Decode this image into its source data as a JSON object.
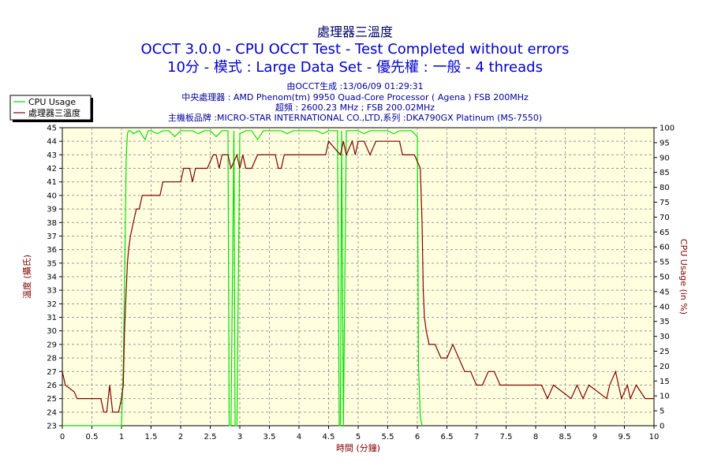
{
  "titles": {
    "line1": "處理器三溫度",
    "line2": "OCCT 3.0.0 - CPU OCCT Test - Test Completed without errors",
    "line3": "10分 - 模式 : Large Data Set - 優先權 : 一般 - 4 threads"
  },
  "info": {
    "generated": "由OCCT生成 :13/06/09 01:29:31",
    "cpu": "中央處理器 : AMD Phenom(tm) 9950 Quad-Core Processor ( Agena ) FSB 200MHz",
    "clock": "超頻 : 2600.23 MHz ; FSB 200.02MHz",
    "board": "主機板品牌 :MICRO-STAR INTERNATIONAL CO.,LTD,系列 :DKA790GX Platinum (MS-7550)"
  },
  "colors": {
    "cpu_usage": "#00e000",
    "temperature": "#800000",
    "grid": "#999999"
  },
  "chart_data": {
    "type": "line",
    "xlabel": "時間 (分鐘)",
    "ylabel_left": "溫度 (攝氏)",
    "ylabel_right": "CPU Usage (in %)",
    "xlim": [
      0,
      10
    ],
    "ylim_left": [
      23,
      45
    ],
    "ylim_right": [
      0,
      100
    ],
    "x_ticks": [
      "0",
      "0.5",
      "1",
      "1.5",
      "2",
      "2.5",
      "3",
      "3.5",
      "4",
      "4.5",
      "5",
      "5.5",
      "6",
      "6.5",
      "7",
      "7.5",
      "8",
      "8.5",
      "9",
      "9.5",
      "10"
    ],
    "y_left_ticks": [
      "23",
      "24",
      "25",
      "26",
      "27",
      "28",
      "29",
      "30",
      "31",
      "32",
      "33",
      "34",
      "35",
      "36",
      "37",
      "38",
      "39",
      "40",
      "41",
      "42",
      "43",
      "44",
      "45"
    ],
    "y_right_ticks": [
      "0",
      "5",
      "10",
      "15",
      "20",
      "25",
      "30",
      "35",
      "40",
      "45",
      "50",
      "55",
      "60",
      "65",
      "70",
      "75",
      "80",
      "85",
      "90",
      "95",
      "100"
    ],
    "grid": true,
    "legend_position": "top-left",
    "series": [
      {
        "name": "CPU Usage",
        "axis": "right",
        "x": [
          0,
          1.0,
          1.03,
          1.06,
          1.08,
          1.1,
          1.12,
          1.15,
          1.2,
          1.3,
          1.4,
          1.45,
          1.5,
          1.6,
          1.7,
          1.8,
          1.9,
          2.0,
          2.1,
          2.2,
          2.3,
          2.4,
          2.5,
          2.6,
          2.7,
          2.75,
          2.8,
          2.82,
          2.85,
          2.9,
          2.92,
          2.95,
          3.0,
          3.1,
          3.2,
          3.3,
          3.4,
          3.5,
          3.6,
          3.7,
          3.8,
          3.9,
          4.0,
          4.1,
          4.2,
          4.3,
          4.4,
          4.5,
          4.6,
          4.65,
          4.68,
          4.7,
          4.72,
          4.75,
          4.8,
          4.9,
          5.0,
          5.1,
          5.2,
          5.3,
          5.4,
          5.5,
          5.6,
          5.7,
          5.8,
          5.9,
          6.0,
          6.02,
          6.05,
          6.08
        ],
        "values": [
          0,
          0,
          20,
          60,
          90,
          98,
          99,
          99,
          98,
          99,
          96,
          99,
          99,
          98,
          99,
          99,
          97,
          99,
          99,
          99,
          98,
          99,
          99,
          97,
          99,
          99,
          99,
          0,
          0,
          99,
          0,
          0,
          98,
          99,
          99,
          96,
          99,
          99,
          99,
          99,
          98,
          99,
          99,
          99,
          99,
          99,
          98,
          99,
          99,
          99,
          0,
          0,
          99,
          0,
          99,
          99,
          99,
          98,
          99,
          99,
          99,
          99,
          98,
          99,
          99,
          99,
          97,
          20,
          3,
          0
        ]
      },
      {
        "name": "處理器三溫度",
        "axis": "left",
        "x": [
          0,
          0.05,
          0.2,
          0.25,
          0.45,
          0.65,
          0.7,
          0.75,
          0.8,
          0.85,
          0.95,
          1.0,
          1.03,
          1.05,
          1.08,
          1.1,
          1.12,
          1.15,
          1.2,
          1.25,
          1.3,
          1.35,
          1.4,
          1.5,
          1.65,
          1.7,
          1.8,
          2.0,
          2.05,
          2.15,
          2.2,
          2.25,
          2.3,
          2.35,
          2.45,
          2.55,
          2.6,
          2.65,
          2.7,
          2.8,
          2.85,
          2.95,
          3.0,
          3.05,
          3.1,
          3.2,
          3.3,
          3.5,
          3.6,
          3.65,
          3.7,
          3.75,
          3.8,
          4.3,
          4.45,
          4.5,
          4.7,
          4.75,
          4.8,
          4.9,
          4.95,
          5.0,
          5.05,
          5.1,
          5.2,
          5.3,
          5.35,
          5.4,
          5.7,
          5.75,
          5.85,
          5.95,
          6.05,
          6.08,
          6.1,
          6.12,
          6.15,
          6.2,
          6.3,
          6.4,
          6.5,
          6.6,
          6.7,
          6.8,
          6.9,
          7.0,
          7.1,
          7.2,
          7.3,
          7.4,
          8.0,
          8.1,
          8.2,
          8.3,
          8.6,
          8.7,
          8.8,
          8.9,
          9.2,
          9.25,
          9.35,
          9.45,
          9.55,
          9.6,
          9.7,
          9.85,
          9.95,
          10.0
        ],
        "values": [
          27,
          26,
          25.5,
          25,
          25,
          25,
          24,
          24,
          26,
          24,
          24,
          25,
          26,
          30,
          33,
          35,
          36,
          37,
          38,
          39,
          39,
          40,
          40,
          40,
          40,
          41,
          41,
          41,
          42,
          42,
          41,
          42,
          42,
          42,
          42,
          43,
          43,
          42,
          43,
          43,
          42,
          43,
          42,
          43,
          42,
          42,
          43,
          43,
          43,
          42,
          42,
          43,
          43,
          43,
          43,
          44,
          43,
          44,
          43,
          44,
          43,
          44,
          44,
          44,
          43,
          44,
          44,
          44,
          44,
          43,
          43,
          43,
          42,
          38,
          33,
          31,
          30,
          29,
          29,
          28,
          28,
          29,
          28,
          27,
          27,
          26,
          26,
          27,
          27,
          26,
          26,
          26,
          25,
          26,
          25,
          26,
          25,
          26,
          25,
          26,
          27,
          25,
          26,
          25,
          26,
          25,
          25,
          25
        ]
      }
    ]
  }
}
